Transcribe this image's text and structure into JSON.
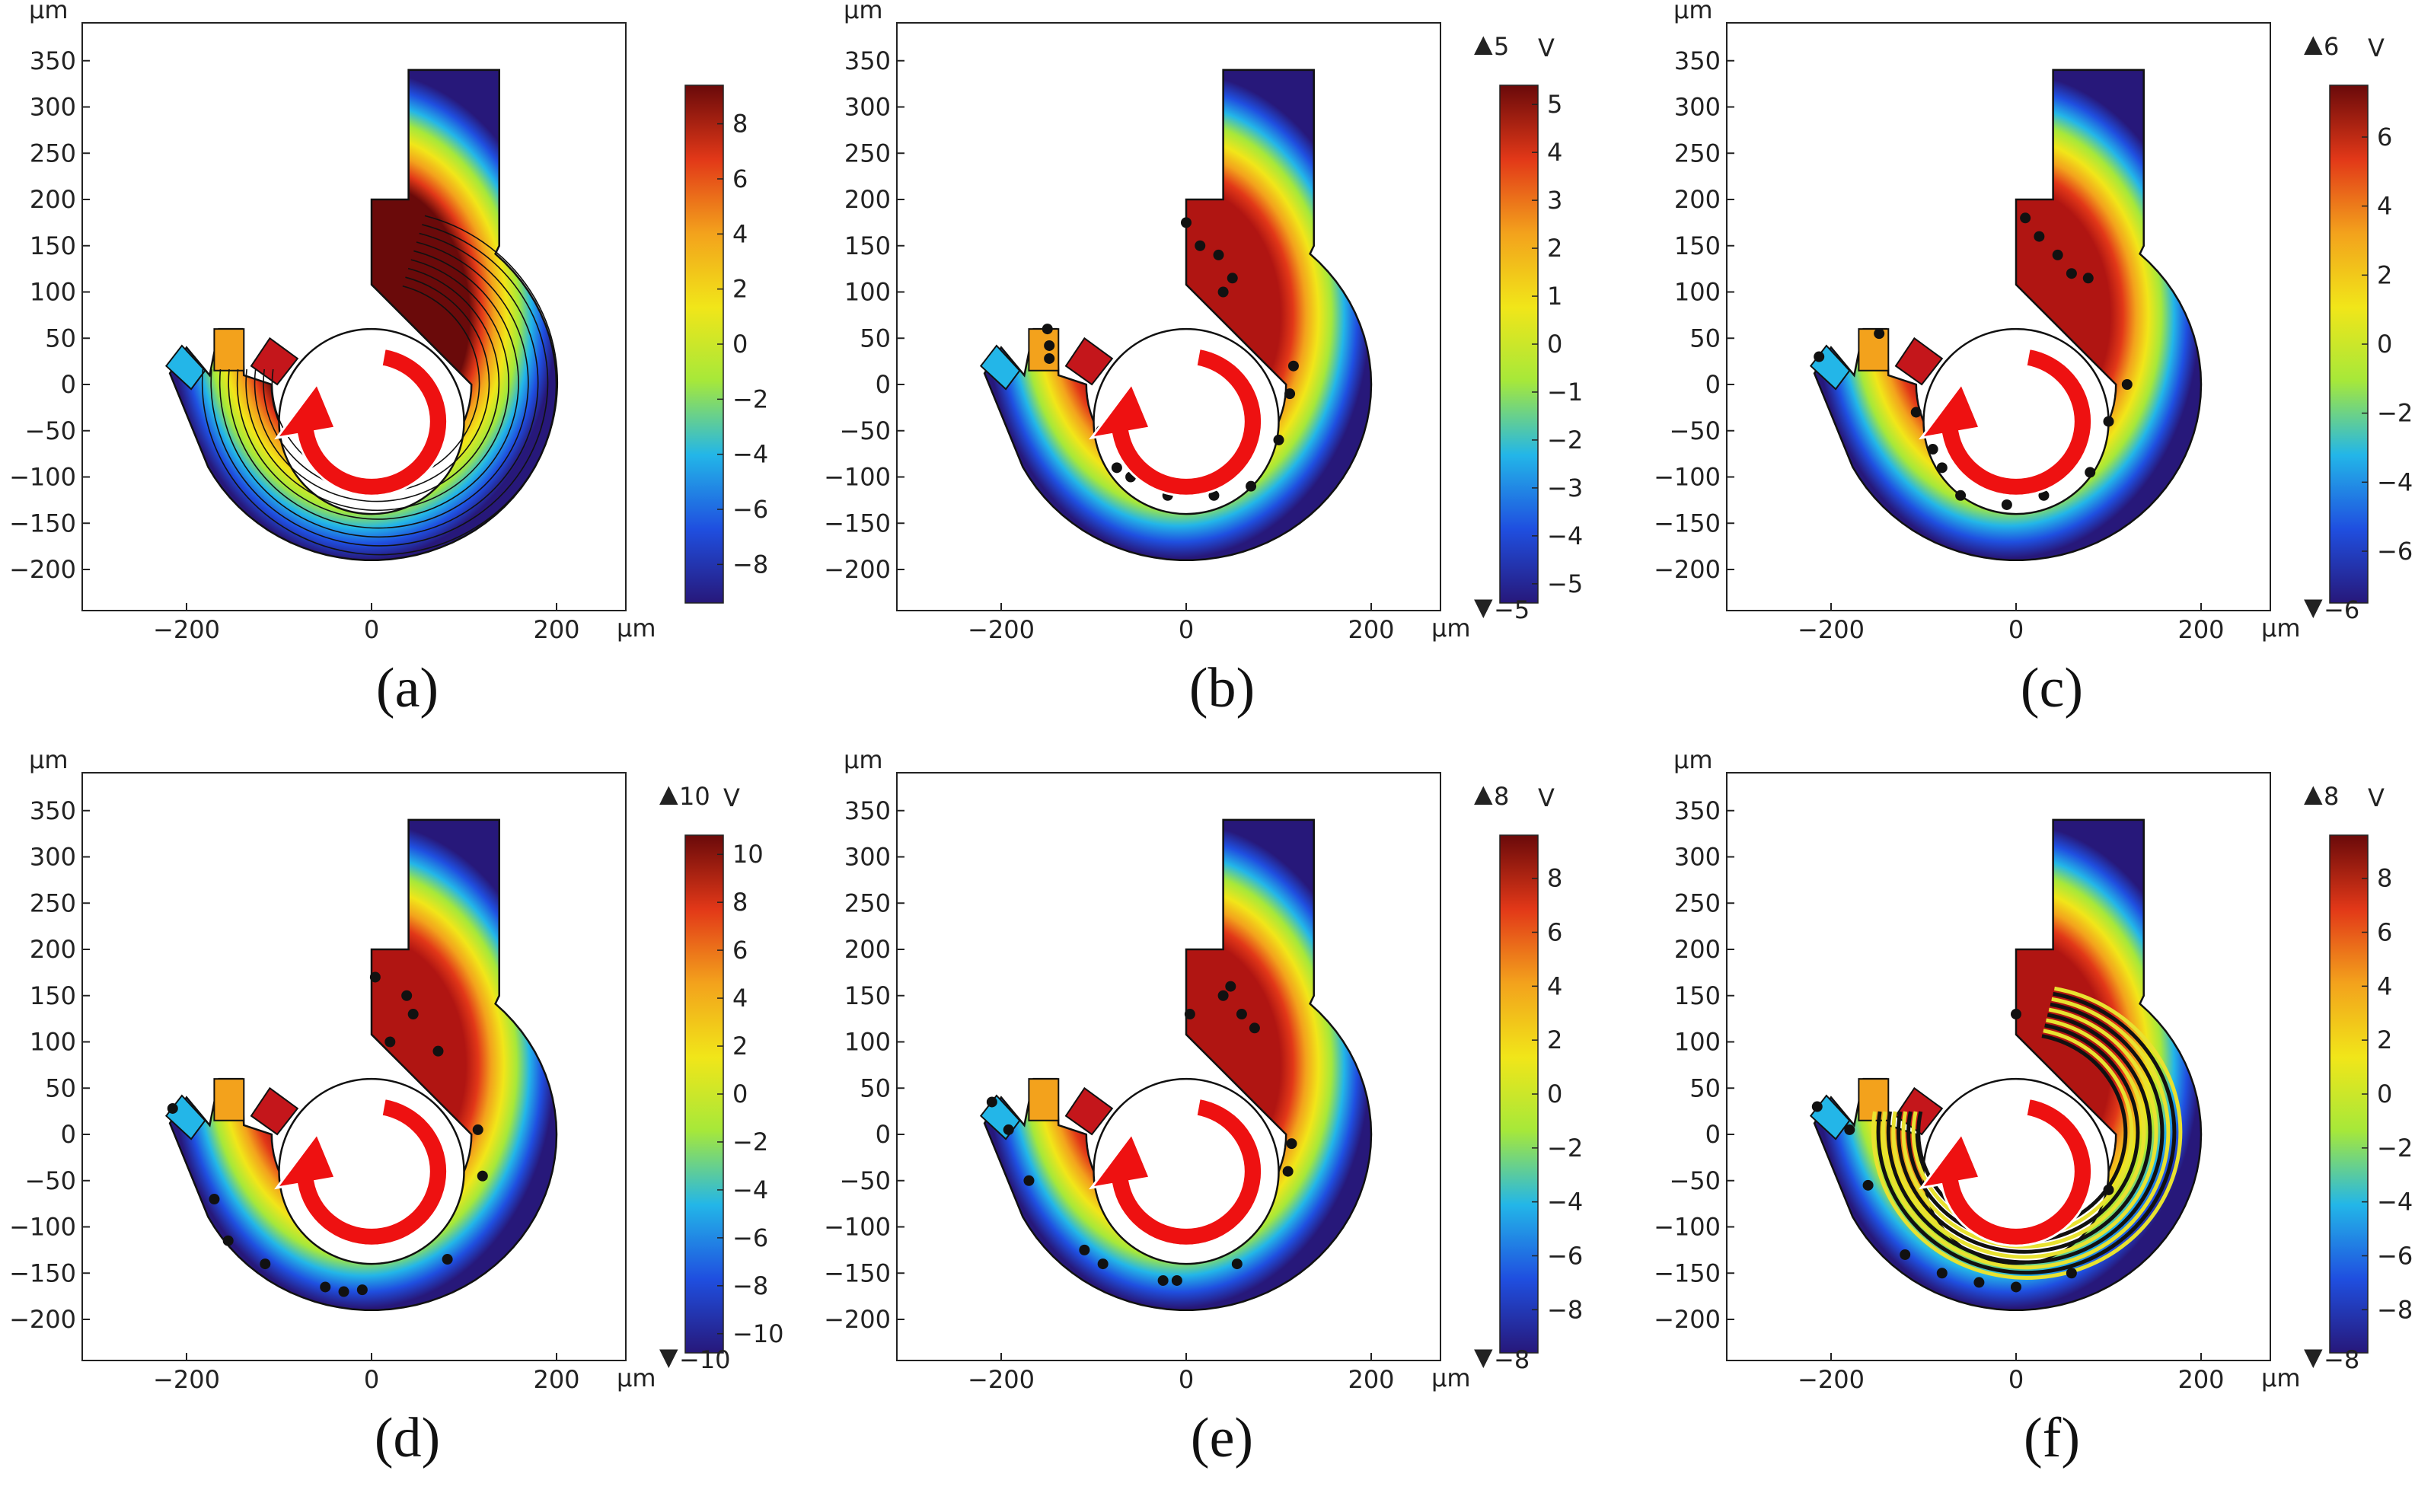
{
  "figure": {
    "axis_unit": "µm",
    "x_ticks": [
      "−200",
      "0",
      "200"
    ],
    "y_ticks": [
      "350",
      "300",
      "250",
      "200",
      "150",
      "100",
      "50",
      "0",
      "−50",
      "−100",
      "−150",
      "−200"
    ],
    "colorbar_unit": "V",
    "arrow_up": "▲",
    "arrow_down": "▼",
    "colors": {
      "colormap": [
        "#27187a",
        "#1f4fe0",
        "#23b6e8",
        "#a6e83a",
        "#f1e619",
        "#f3a21c",
        "#e23818",
        "#6a0a0a"
      ],
      "arrow": "#ee1111",
      "particle": "#111111",
      "trajectory": "#e8e230"
    }
  },
  "panels": [
    {
      "caption": "(a)",
      "kind": "contours",
      "colorbar_ticks": [
        "8",
        "6",
        "4",
        "2",
        "0",
        "−2",
        "−4",
        "−6",
        "−8"
      ],
      "colorbar_range": [
        -9.4,
        9.4
      ],
      "colorbar_unit_shown": false,
      "max_label": "",
      "min_label": ""
    },
    {
      "caption": "(b)",
      "kind": "particles",
      "colorbar_ticks": [
        "5",
        "4",
        "3",
        "2",
        "1",
        "0",
        "−1",
        "−2",
        "−3",
        "−4",
        "−5"
      ],
      "colorbar_range": [
        -5.4,
        5.4
      ],
      "colorbar_unit_shown": true,
      "max_label": "5",
      "min_label": "−5"
    },
    {
      "caption": "(c)",
      "kind": "particles",
      "colorbar_ticks": [
        "6",
        "4",
        "2",
        "0",
        "−2",
        "−4",
        "−6"
      ],
      "colorbar_range": [
        -7.5,
        7.5
      ],
      "colorbar_unit_shown": true,
      "max_label": "6",
      "min_label": "−6"
    },
    {
      "caption": "(d)",
      "kind": "particles",
      "colorbar_ticks": [
        "10",
        "8",
        "6",
        "4",
        "2",
        "0",
        "−2",
        "−4",
        "−6",
        "−8",
        "−10"
      ],
      "colorbar_range": [
        -10.8,
        10.8
      ],
      "colorbar_unit_shown": true,
      "max_label": "10",
      "min_label": "−10"
    },
    {
      "caption": "(e)",
      "kind": "particles",
      "colorbar_ticks": [
        "8",
        "6",
        "4",
        "2",
        "0",
        "−2",
        "−4",
        "−6",
        "−8"
      ],
      "colorbar_range": [
        -9.6,
        9.6
      ],
      "colorbar_unit_shown": true,
      "max_label": "8",
      "min_label": "−8"
    },
    {
      "caption": "(f)",
      "kind": "trajectories",
      "colorbar_ticks": [
        "8",
        "6",
        "4",
        "2",
        "0",
        "−2",
        "−4",
        "−6",
        "−8"
      ],
      "colorbar_range": [
        -9.6,
        9.6
      ],
      "colorbar_unit_shown": true,
      "max_label": "8",
      "min_label": "−8"
    }
  ]
}
